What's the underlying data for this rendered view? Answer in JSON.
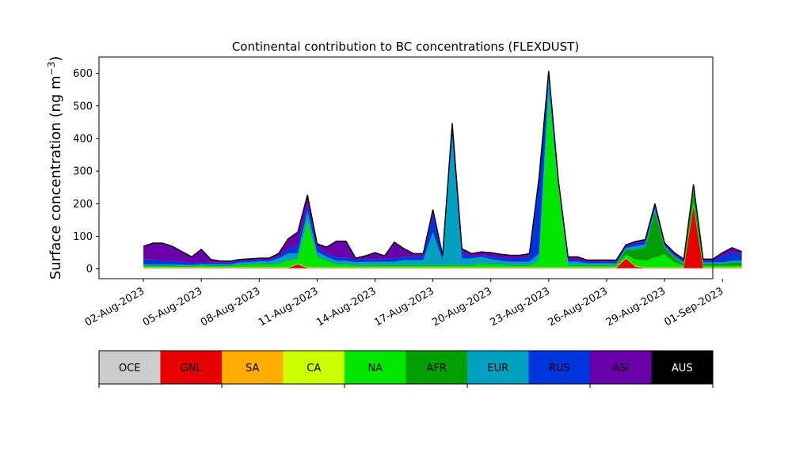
{
  "chart_data": {
    "type": "area",
    "title": "Continental contribution to BC concentrations (FLEXDUST)",
    "ylabel_main": "Surface concentration (ng m",
    "ylabel_sup": "−3",
    "ylabel_close": ")",
    "xlim": [
      -1.3,
      30.5
    ],
    "ylim": [
      -30,
      650
    ],
    "y_ticks": [
      0,
      100,
      200,
      300,
      400,
      500,
      600
    ],
    "y_tick_labels": [
      "0",
      "100",
      "200",
      "300",
      "400",
      "500",
      "600"
    ],
    "x_ticks": [
      1,
      4,
      7,
      10,
      13,
      16,
      19,
      22,
      25,
      28,
      31
    ],
    "x_tick_labels": [
      "02-Aug-2023",
      "05-Aug-2023",
      "08-Aug-2023",
      "11-Aug-2023",
      "14-Aug-2023",
      "17-Aug-2023",
      "20-Aug-2023",
      "23-Aug-2023",
      "26-Aug-2023",
      "29-Aug-2023",
      "01-Sep-2023"
    ],
    "x": [
      "01-Aug-2023 00:00",
      "01-Aug-2023 12:00",
      "02-Aug-2023 00:00",
      "02-Aug-2023 12:00",
      "03-Aug-2023 00:00",
      "03-Aug-2023 12:00",
      "04-Aug-2023 00:00",
      "04-Aug-2023 12:00",
      "05-Aug-2023 00:00",
      "05-Aug-2023 12:00",
      "06-Aug-2023 00:00",
      "06-Aug-2023 12:00",
      "07-Aug-2023 00:00",
      "07-Aug-2023 12:00",
      "08-Aug-2023 00:00",
      "08-Aug-2023 12:00",
      "09-Aug-2023 00:00",
      "09-Aug-2023 12:00",
      "10-Aug-2023 00:00",
      "10-Aug-2023 12:00",
      "11-Aug-2023 00:00",
      "11-Aug-2023 12:00",
      "12-Aug-2023 00:00",
      "12-Aug-2023 12:00",
      "13-Aug-2023 00:00",
      "13-Aug-2023 12:00",
      "14-Aug-2023 00:00",
      "14-Aug-2023 12:00",
      "15-Aug-2023 00:00",
      "15-Aug-2023 12:00",
      "16-Aug-2023 00:00",
      "16-Aug-2023 12:00",
      "17-Aug-2023 00:00",
      "17-Aug-2023 12:00",
      "18-Aug-2023 00:00",
      "18-Aug-2023 12:00",
      "19-Aug-2023 00:00",
      "19-Aug-2023 12:00",
      "20-Aug-2023 00:00",
      "20-Aug-2023 12:00",
      "21-Aug-2023 00:00",
      "21-Aug-2023 12:00",
      "22-Aug-2023 00:00",
      "22-Aug-2023 12:00",
      "23-Aug-2023 00:00",
      "23-Aug-2023 12:00",
      "24-Aug-2023 00:00",
      "24-Aug-2023 12:00",
      "25-Aug-2023 00:00",
      "25-Aug-2023 12:00",
      "26-Aug-2023 00:00",
      "26-Aug-2023 12:00",
      "27-Aug-2023 00:00",
      "27-Aug-2023 12:00",
      "28-Aug-2023 00:00",
      "28-Aug-2023 12:00",
      "29-Aug-2023 00:00",
      "29-Aug-2023 12:00",
      "30-Aug-2023 00:00",
      "30-Aug-2023 12:00",
      "31-Aug-2023 00:00",
      "31-Aug-2023 12:00",
      "01-Sep-2023 00:00"
    ],
    "series": [
      {
        "name": "OCE",
        "color": "#cccccc",
        "values": [
          2,
          2,
          2,
          2,
          2,
          2,
          2,
          2,
          2,
          2,
          2,
          2,
          2,
          2,
          2,
          2,
          2,
          2,
          2,
          2,
          2,
          2,
          2,
          2,
          2,
          2,
          2,
          2,
          2,
          2,
          2,
          2,
          2,
          2,
          2,
          2,
          2,
          2,
          2,
          2,
          2,
          2,
          2,
          2,
          2,
          2,
          2,
          2,
          2,
          2,
          2,
          2,
          2,
          2,
          2,
          2,
          2,
          2,
          2,
          2,
          2,
          2,
          2
        ]
      },
      {
        "name": "GNL",
        "color": "#e60000",
        "values": [
          1,
          1,
          1,
          1,
          1,
          1,
          1,
          1,
          1,
          1,
          1,
          1,
          1,
          1,
          1,
          1,
          12,
          1,
          1,
          1,
          1,
          1,
          1,
          1,
          1,
          1,
          1,
          1,
          1,
          1,
          1,
          1,
          1,
          1,
          1,
          1,
          1,
          1,
          1,
          1,
          1,
          1,
          1,
          1,
          1,
          1,
          1,
          1,
          1,
          1,
          30,
          5,
          1,
          1,
          1,
          1,
          1,
          190,
          1,
          1,
          1,
          1,
          1
        ]
      },
      {
        "name": "SA",
        "color": "#ffad00",
        "values": [
          0,
          0,
          0,
          0,
          0,
          0,
          0,
          0,
          0,
          0,
          0,
          0,
          0,
          0,
          0,
          0,
          0,
          0,
          0,
          0,
          0,
          0,
          0,
          0,
          0,
          0,
          0,
          0,
          0,
          0,
          0,
          0,
          0,
          0,
          0,
          0,
          0,
          0,
          0,
          0,
          0,
          0,
          0,
          0,
          0,
          0,
          0,
          0,
          0,
          0,
          0,
          0,
          0,
          0,
          0,
          0,
          0,
          0,
          0,
          0,
          0,
          0,
          0
        ]
      },
      {
        "name": "CA",
        "color": "#ccff00",
        "values": [
          2,
          2,
          2,
          2,
          2,
          2,
          2,
          2,
          2,
          2,
          2,
          2,
          2,
          2,
          2,
          2,
          2,
          2,
          2,
          2,
          2,
          2,
          2,
          2,
          2,
          2,
          2,
          2,
          2,
          2,
          2,
          2,
          2,
          2,
          2,
          2,
          2,
          2,
          2,
          2,
          2,
          2,
          2,
          2,
          2,
          2,
          2,
          2,
          2,
          2,
          2,
          2,
          2,
          2,
          2,
          2,
          2,
          2,
          2,
          2,
          2,
          2,
          2
        ]
      },
      {
        "name": "NA",
        "color": "#00e600",
        "values": [
          3,
          3,
          3,
          3,
          2,
          2,
          4,
          3,
          3,
          3,
          6,
          8,
          10,
          8,
          10,
          20,
          15,
          140,
          30,
          20,
          8,
          8,
          5,
          5,
          5,
          5,
          5,
          5,
          5,
          5,
          5,
          5,
          5,
          5,
          5,
          10,
          8,
          8,
          5,
          5,
          5,
          20,
          520,
          240,
          5,
          5,
          5,
          5,
          5,
          5,
          10,
          20,
          20,
          30,
          40,
          15,
          5,
          10,
          5,
          5,
          5,
          5,
          5
        ]
      },
      {
        "name": "AFR",
        "color": "#009e00",
        "values": [
          2,
          2,
          2,
          2,
          2,
          2,
          2,
          2,
          2,
          2,
          2,
          2,
          2,
          2,
          2,
          2,
          2,
          2,
          2,
          2,
          2,
          2,
          2,
          2,
          2,
          2,
          2,
          2,
          2,
          2,
          2,
          2,
          2,
          2,
          2,
          2,
          2,
          2,
          2,
          2,
          2,
          2,
          2,
          2,
          2,
          2,
          2,
          2,
          2,
          2,
          15,
          30,
          40,
          140,
          20,
          15,
          5,
          40,
          5,
          5,
          5,
          10,
          10
        ]
      },
      {
        "name": "EUR",
        "color": "#00a0c0",
        "values": [
          4,
          4,
          4,
          4,
          4,
          3,
          4,
          4,
          4,
          4,
          6,
          6,
          6,
          8,
          15,
          20,
          15,
          30,
          15,
          10,
          10,
          10,
          8,
          10,
          10,
          10,
          10,
          15,
          15,
          15,
          100,
          15,
          395,
          20,
          20,
          20,
          15,
          10,
          10,
          10,
          10,
          20,
          60,
          10,
          10,
          10,
          5,
          5,
          5,
          5,
          5,
          10,
          10,
          10,
          5,
          5,
          5,
          5,
          5,
          5,
          5,
          5,
          5
        ]
      },
      {
        "name": "RUS",
        "color": "#0034dd",
        "values": [
          15,
          15,
          10,
          10,
          10,
          5,
          5,
          5,
          5,
          5,
          5,
          5,
          5,
          5,
          5,
          15,
          25,
          20,
          15,
          10,
          10,
          10,
          8,
          8,
          8,
          8,
          10,
          10,
          10,
          10,
          60,
          5,
          30,
          20,
          5,
          5,
          10,
          10,
          10,
          10,
          15,
          220,
          10,
          5,
          5,
          5,
          5,
          5,
          5,
          5,
          5,
          10,
          10,
          10,
          5,
          5,
          5,
          5,
          5,
          5,
          20,
          25,
          20
        ]
      },
      {
        "name": "ASI",
        "color": "#6a00a8",
        "values": [
          40,
          50,
          55,
          45,
          30,
          20,
          40,
          10,
          5,
          5,
          5,
          5,
          5,
          5,
          10,
          30,
          40,
          30,
          10,
          20,
          50,
          50,
          5,
          10,
          20,
          10,
          50,
          25,
          10,
          10,
          10,
          10,
          10,
          10,
          10,
          10,
          10,
          10,
          10,
          10,
          10,
          15,
          10,
          10,
          10,
          10,
          5,
          5,
          5,
          5,
          5,
          5,
          5,
          5,
          5,
          5,
          5,
          5,
          5,
          5,
          10,
          15,
          8
        ]
      },
      {
        "name": "AUS",
        "color": "#000000",
        "values": [
          0,
          0,
          0,
          0,
          0,
          0,
          0,
          0,
          0,
          0,
          0,
          0,
          0,
          0,
          0,
          0,
          0,
          0,
          0,
          0,
          0,
          0,
          0,
          0,
          0,
          0,
          0,
          0,
          0,
          0,
          0,
          0,
          0,
          0,
          0,
          0,
          0,
          0,
          0,
          0,
          0,
          0,
          0,
          0,
          0,
          0,
          0,
          0,
          0,
          0,
          0,
          0,
          0,
          0,
          0,
          0,
          0,
          0,
          0,
          0,
          0,
          0,
          0
        ]
      }
    ],
    "legend_position": "below",
    "grid": false
  }
}
